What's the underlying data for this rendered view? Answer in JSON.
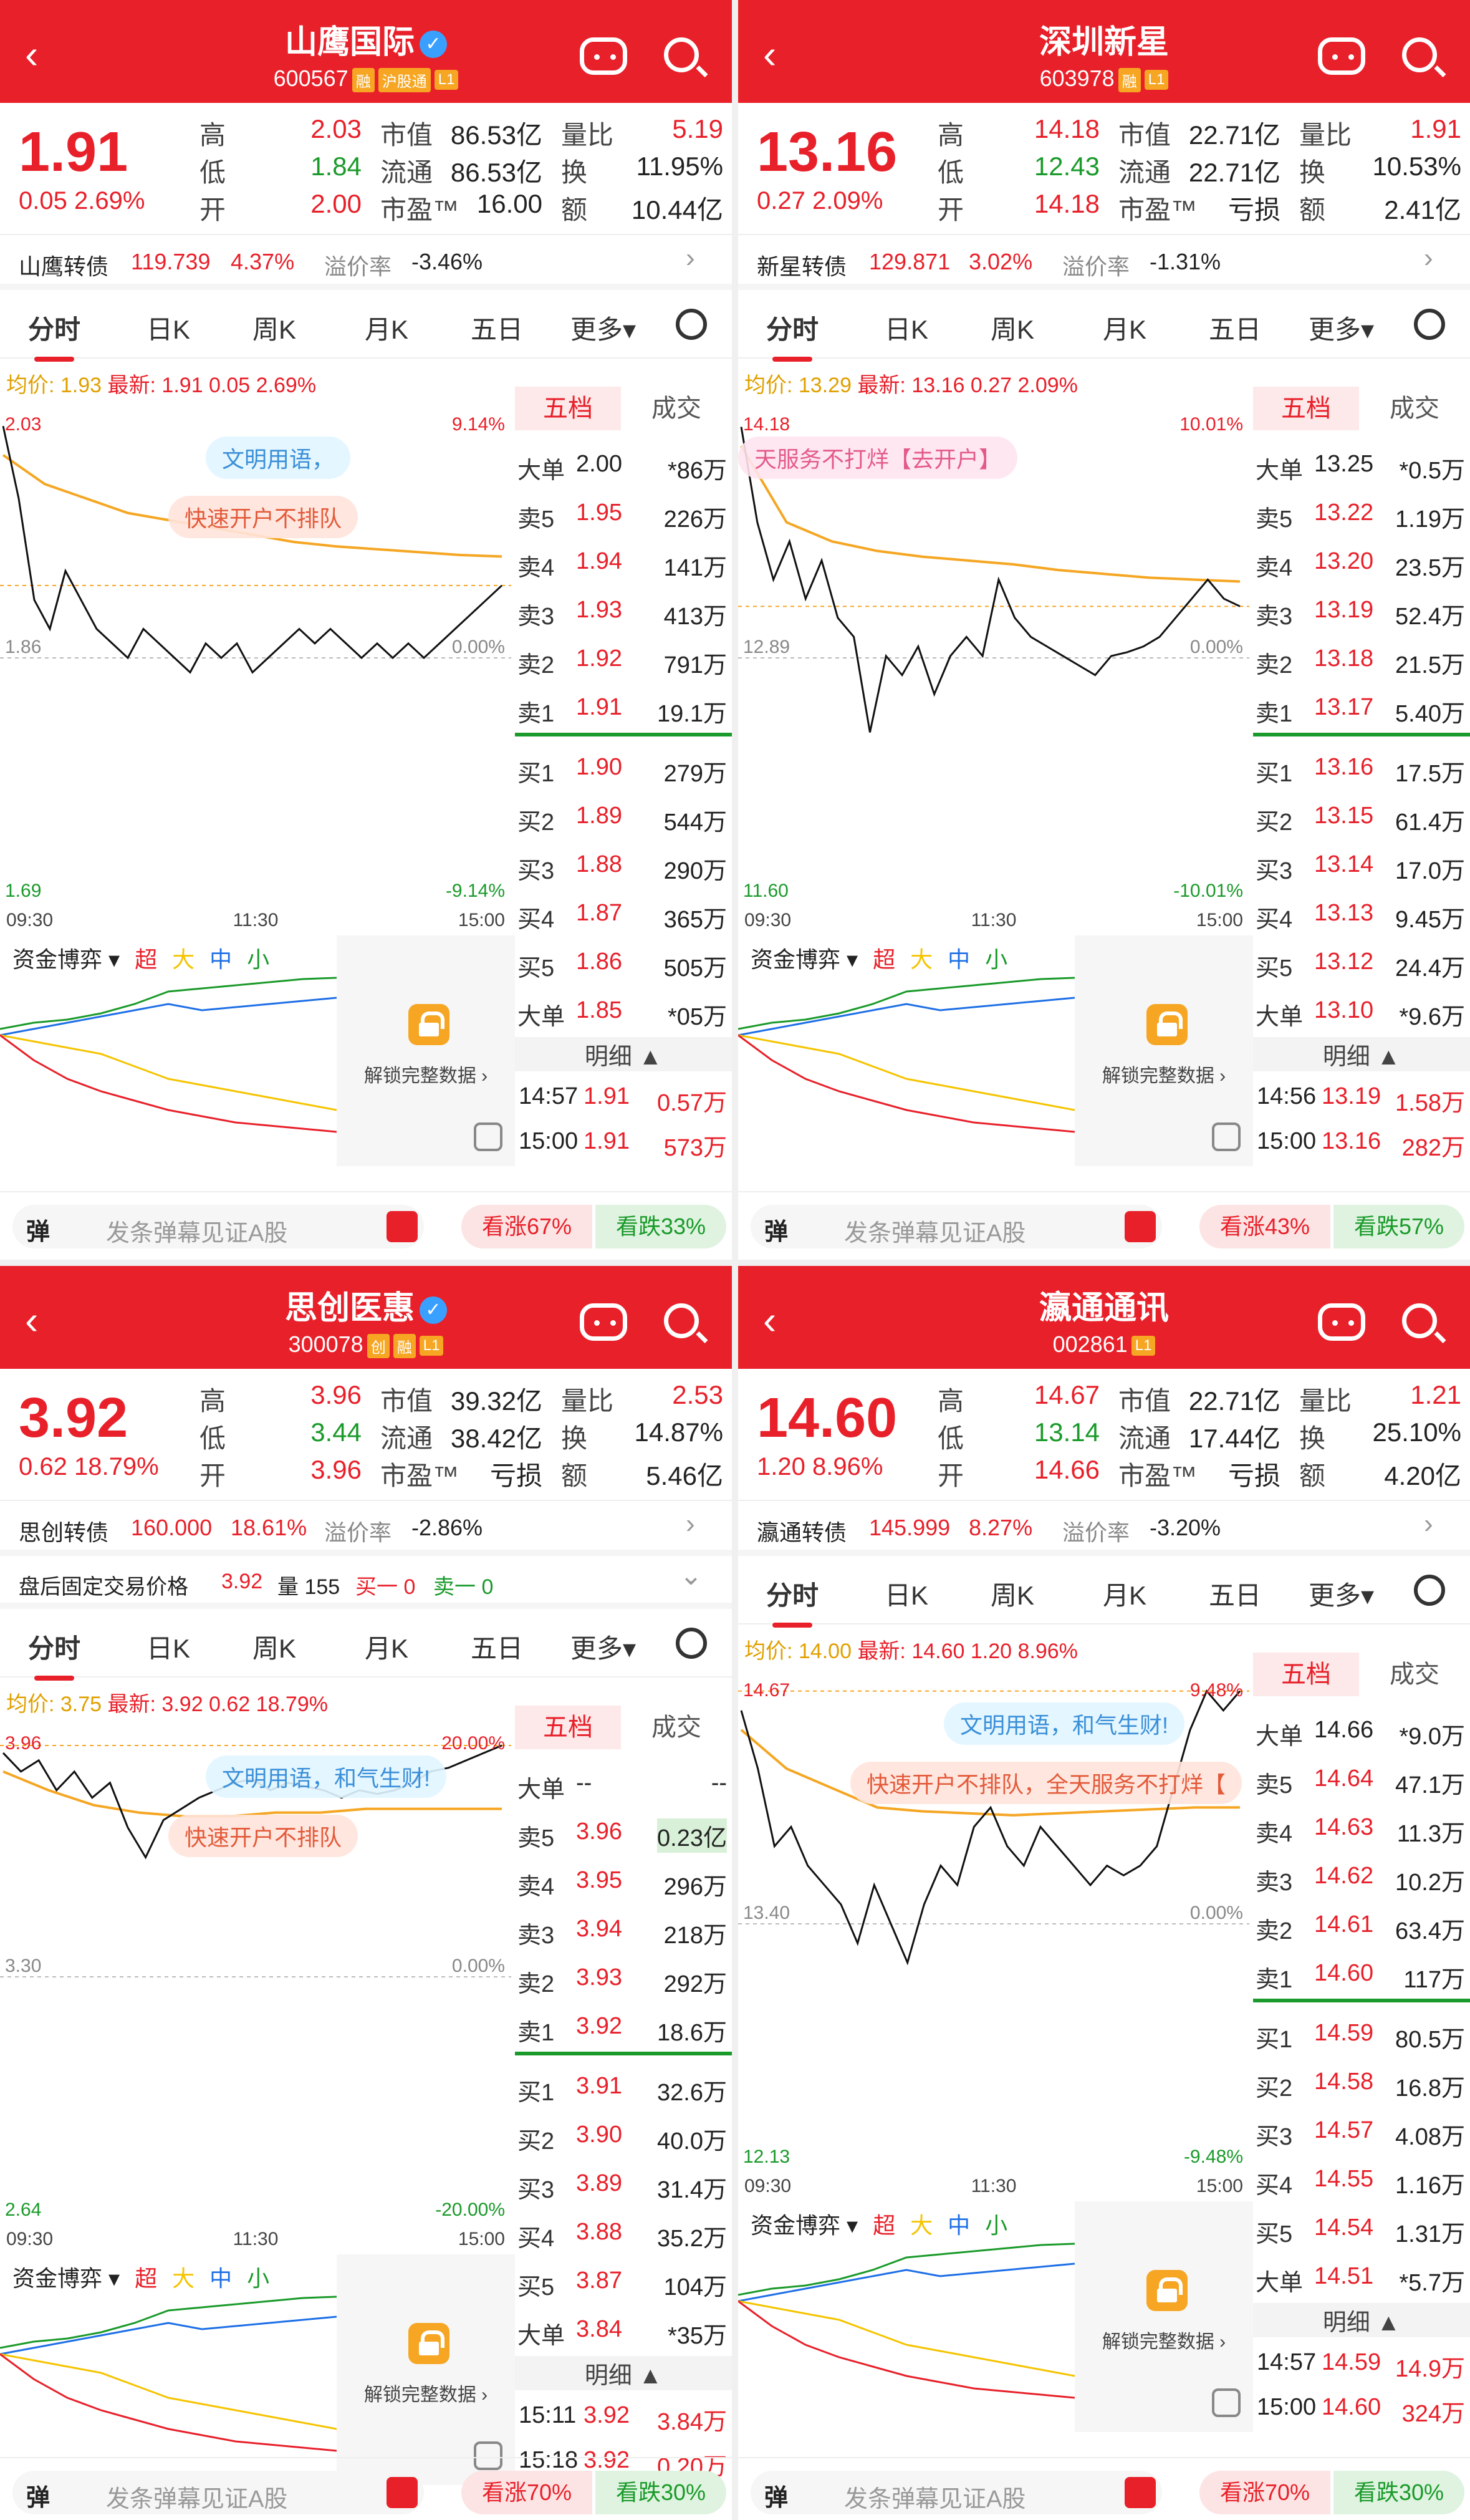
{
  "common": {
    "tabs": [
      "分时",
      "日K",
      "周K",
      "月K",
      "五日",
      "更多▾"
    ],
    "five_levels_label": "五档",
    "trades_label": "成交",
    "detail_label": "明细 ▲",
    "capital_label": "资金博弈 ▾",
    "capital_legend": [
      "超",
      "大",
      "中",
      "小"
    ],
    "unlock_text": "解锁完整数据 ›",
    "danmu_icon": "弹",
    "danmu_hint": "发条弹幕见证A股",
    "time_labels": [
      "09:30",
      "11:30",
      "15:00"
    ],
    "premium_label": "溢价率",
    "labels": {
      "high": "高",
      "low": "低",
      "open": "开",
      "mcap": "市值",
      "float": "流通",
      "pe": "市盈™",
      "vol_ratio": "量比",
      "turnover": "换",
      "amount": "额"
    },
    "colors": {
      "red": "#e8202a",
      "green": "#1a9a2a",
      "avg_line": "#f5a623",
      "blue": "#1e6fe6"
    }
  },
  "stocks": [
    {
      "name": "山鹰国际",
      "verified": true,
      "code": "600567",
      "tags": [
        "融",
        "沪股通",
        "L1"
      ],
      "price": "1.91",
      "change": "0.05",
      "change_pct": "2.69%",
      "high": "2.03",
      "low": "1.84",
      "open": "2.00",
      "mcap": "86.53亿",
      "float": "86.53亿",
      "pe": "16.00",
      "vol_ratio": "5.19",
      "turnover": "11.95%",
      "amount": "10.44亿",
      "bond": {
        "name": "山鹰转债",
        "price": "119.739",
        "pct": "4.37%",
        "premium": "-3.46%"
      },
      "avg": "均价: 1.93",
      "latest": "最新: 1.91  0.05  2.69%",
      "y_top": "2.03",
      "y_mid": "1.86",
      "y_bot": "1.69",
      "pct_top": "9.14%",
      "pct_mid": "0.00%",
      "pct_bot": "-9.14%",
      "bubbles": [
        "文明用语，",
        "快速开户不排队"
      ],
      "orderbook": [
        {
          "l": "大单",
          "p": "2.00",
          "v": "*86万",
          "c": "green"
        },
        {
          "l": "卖5",
          "p": "1.95",
          "v": "226万",
          "c": "red"
        },
        {
          "l": "卖4",
          "p": "1.94",
          "v": "141万",
          "c": "red"
        },
        {
          "l": "卖3",
          "p": "1.93",
          "v": "413万",
          "c": "red"
        },
        {
          "l": "卖2",
          "p": "1.92",
          "v": "791万",
          "c": "red"
        },
        {
          "l": "卖1",
          "p": "1.91",
          "v": "19.1万",
          "c": "red"
        },
        {
          "l": "买1",
          "p": "1.90",
          "v": "279万",
          "c": "red"
        },
        {
          "l": "买2",
          "p": "1.89",
          "v": "544万",
          "c": "red"
        },
        {
          "l": "买3",
          "p": "1.88",
          "v": "290万",
          "c": "red"
        },
        {
          "l": "买4",
          "p": "1.87",
          "v": "365万",
          "c": "red"
        },
        {
          "l": "买5",
          "p": "1.86",
          "v": "505万",
          "c": "none"
        },
        {
          "l": "大单",
          "p": "1.85",
          "v": "*05万",
          "c": "none"
        }
      ],
      "trades": [
        {
          "t": "14:57",
          "p": "1.91",
          "v": "0.57万"
        },
        {
          "t": "15:00",
          "p": "1.91",
          "v": "573万"
        }
      ],
      "price_series": [
        2.02,
        1.97,
        1.9,
        1.88,
        1.92,
        1.9,
        1.88,
        1.87,
        1.86,
        1.88,
        1.87,
        1.86,
        1.85,
        1.87,
        1.86,
        1.87,
        1.85,
        1.86,
        1.87,
        1.88,
        1.87,
        1.88,
        1.87,
        1.86,
        1.87,
        1.86,
        1.87,
        1.86,
        1.87,
        1.88,
        1.89,
        1.9,
        1.91
      ],
      "avg_series": [
        2.0,
        1.98,
        1.97,
        1.96,
        1.955,
        1.95,
        1.945,
        1.94,
        1.937,
        1.935,
        1.933,
        1.931,
        1.93
      ],
      "sentiment": {
        "up": "看涨67%",
        "down": "看跌33%"
      },
      "after_hours": null
    },
    {
      "name": "深圳新星",
      "verified": false,
      "code": "603978",
      "tags": [
        "融",
        "L1"
      ],
      "price": "13.16",
      "change": "0.27",
      "change_pct": "2.09%",
      "high": "14.18",
      "low": "12.43",
      "open": "14.18",
      "mcap": "22.71亿",
      "float": "22.71亿",
      "pe": "亏损",
      "vol_ratio": "1.91",
      "turnover": "10.53%",
      "amount": "2.41亿",
      "bond": {
        "name": "新星转债",
        "price": "129.871",
        "pct": "3.02%",
        "premium": "-1.31%"
      },
      "avg": "均价: 13.29",
      "latest": "最新: 13.16  0.27  2.09%",
      "y_top": "14.18",
      "y_mid": "12.89",
      "y_bot": "11.60",
      "pct_top": "10.01%",
      "pct_mid": "0.00%",
      "pct_bot": "-10.01%",
      "bubbles": [
        "天服务不打烊【去开户】"
      ],
      "orderbook": [
        {
          "l": "大单",
          "p": "13.25",
          "v": "*0.5万",
          "c": "green"
        },
        {
          "l": "卖5",
          "p": "13.22",
          "v": "1.19万",
          "c": "red"
        },
        {
          "l": "卖4",
          "p": "13.20",
          "v": "23.5万",
          "c": "red"
        },
        {
          "l": "卖3",
          "p": "13.19",
          "v": "52.4万",
          "c": "red"
        },
        {
          "l": "卖2",
          "p": "13.18",
          "v": "21.5万",
          "c": "red"
        },
        {
          "l": "卖1",
          "p": "13.17",
          "v": "5.40万",
          "c": "red"
        },
        {
          "l": "买1",
          "p": "13.16",
          "v": "17.5万",
          "c": "red"
        },
        {
          "l": "买2",
          "p": "13.15",
          "v": "61.4万",
          "c": "red"
        },
        {
          "l": "买3",
          "p": "13.14",
          "v": "17.0万",
          "c": "red"
        },
        {
          "l": "买4",
          "p": "13.13",
          "v": "9.45万",
          "c": "red"
        },
        {
          "l": "买5",
          "p": "13.12",
          "v": "24.4万",
          "c": "red"
        },
        {
          "l": "大单",
          "p": "13.10",
          "v": "*9.6万",
          "c": "red"
        }
      ],
      "trades": [
        {
          "t": "14:56",
          "p": "13.19",
          "v": "1.58万"
        },
        {
          "t": "15:00",
          "p": "13.16",
          "v": "282万"
        }
      ],
      "price_series": [
        14.1,
        13.6,
        13.3,
        13.5,
        13.2,
        13.4,
        13.1,
        13.0,
        12.5,
        12.9,
        12.8,
        12.95,
        12.7,
        12.9,
        13.0,
        12.9,
        13.3,
        13.1,
        13.0,
        12.95,
        12.9,
        12.85,
        12.8,
        12.9,
        12.92,
        12.95,
        13.0,
        13.1,
        13.2,
        13.3,
        13.2,
        13.16
      ],
      "avg_series": [
        14.0,
        13.6,
        13.5,
        13.45,
        13.42,
        13.4,
        13.38,
        13.35,
        13.33,
        13.31,
        13.3,
        13.29
      ],
      "sentiment": {
        "up": "看涨43%",
        "down": "看跌57%"
      },
      "after_hours": null
    },
    {
      "name": "思创医惠",
      "verified": true,
      "code": "300078",
      "tags": [
        "创",
        "融",
        "L1"
      ],
      "price": "3.92",
      "change": "0.62",
      "change_pct": "18.79%",
      "high": "3.96",
      "low": "3.44",
      "open": "3.96",
      "mcap": "39.32亿",
      "float": "38.42亿",
      "pe": "亏损",
      "vol_ratio": "2.53",
      "turnover": "14.87%",
      "amount": "5.46亿",
      "bond": {
        "name": "思创转债",
        "price": "160.000",
        "pct": "18.61%",
        "premium": "-2.86%"
      },
      "avg": "均价: 3.75",
      "latest": "最新: 3.92  0.62  18.79%",
      "y_top": "3.96",
      "y_mid": "3.30",
      "y_bot": "2.64",
      "pct_top": "20.00%",
      "pct_mid": "0.00%",
      "pct_bot": "-20.00%",
      "bubbles": [
        "文明用语，和气生财!",
        "快速开户不排队"
      ],
      "orderbook": [
        {
          "l": "大单",
          "p": "--",
          "v": "--",
          "c": "green"
        },
        {
          "l": "卖5",
          "p": "3.96",
          "v": "0.23亿",
          "c": "green"
        },
        {
          "l": "卖4",
          "p": "3.95",
          "v": "296万",
          "c": "none"
        },
        {
          "l": "卖3",
          "p": "3.94",
          "v": "218万",
          "c": "none"
        },
        {
          "l": "卖2",
          "p": "3.93",
          "v": "292万",
          "c": "none"
        },
        {
          "l": "卖1",
          "p": "3.92",
          "v": "18.6万",
          "c": "none"
        },
        {
          "l": "买1",
          "p": "3.91",
          "v": "32.6万",
          "c": "none"
        },
        {
          "l": "买2",
          "p": "3.90",
          "v": "40.0万",
          "c": "none"
        },
        {
          "l": "买3",
          "p": "3.89",
          "v": "31.4万",
          "c": "none"
        },
        {
          "l": "买4",
          "p": "3.88",
          "v": "35.2万",
          "c": "none"
        },
        {
          "l": "买5",
          "p": "3.87",
          "v": "104万",
          "c": "none"
        },
        {
          "l": "大单",
          "p": "3.84",
          "v": "*35万",
          "c": "red"
        }
      ],
      "trades": [
        {
          "t": "15:11",
          "p": "3.92",
          "v": "3.84万"
        },
        {
          "t": "15:18",
          "p": "3.92",
          "v": "0.20万"
        }
      ],
      "price_series": [
        3.9,
        3.85,
        3.88,
        3.8,
        3.85,
        3.78,
        3.82,
        3.7,
        3.62,
        3.72,
        3.75,
        3.78,
        3.8,
        3.82,
        3.83,
        3.8,
        3.82,
        3.81,
        3.8,
        3.78,
        3.8,
        3.79,
        3.8,
        3.82,
        3.85,
        3.86,
        3.88,
        3.9,
        3.92
      ],
      "avg_series": [
        3.85,
        3.8,
        3.76,
        3.74,
        3.73,
        3.73,
        3.74,
        3.74,
        3.75,
        3.75,
        3.75,
        3.75
      ],
      "sentiment": {
        "up": "看涨70%",
        "down": "看跌30%"
      },
      "after_hours": {
        "label": "盘后固定交易价格",
        "price": "3.92",
        "vol": "量 155",
        "buy": "买一 0",
        "sell": "卖一 0"
      }
    },
    {
      "name": "瀛通通讯",
      "verified": false,
      "code": "002861",
      "tags": [
        "L1"
      ],
      "price": "14.60",
      "change": "1.20",
      "change_pct": "8.96%",
      "high": "14.67",
      "low": "13.14",
      "open": "14.66",
      "mcap": "22.71亿",
      "float": "17.44亿",
      "pe": "亏损",
      "vol_ratio": "1.21",
      "turnover": "25.10%",
      "amount": "4.20亿",
      "bond": {
        "name": "瀛通转债",
        "price": "145.999",
        "pct": "8.27%",
        "premium": "-3.20%"
      },
      "avg": "均价: 14.00",
      "latest": "最新: 14.60  1.20  8.96%",
      "y_top": "14.67",
      "y_mid": "13.40",
      "y_bot": "12.13",
      "pct_top": "9.48%",
      "pct_mid": "0.00%",
      "pct_bot": "-9.48%",
      "bubbles": [
        "文明用语，和气生财!",
        "快速开户不排队，全天服务不打烊【"
      ],
      "orderbook": [
        {
          "l": "大单",
          "p": "14.66",
          "v": "*9.0万",
          "c": "green"
        },
        {
          "l": "卖5",
          "p": "14.64",
          "v": "47.1万",
          "c": "red"
        },
        {
          "l": "卖4",
          "p": "14.63",
          "v": "11.3万",
          "c": "red"
        },
        {
          "l": "卖3",
          "p": "14.62",
          "v": "10.2万",
          "c": "red"
        },
        {
          "l": "卖2",
          "p": "14.61",
          "v": "63.4万",
          "c": "red"
        },
        {
          "l": "卖1",
          "p": "14.60",
          "v": "117万",
          "c": "red"
        },
        {
          "l": "买1",
          "p": "14.59",
          "v": "80.5万",
          "c": "red"
        },
        {
          "l": "买2",
          "p": "14.58",
          "v": "16.8万",
          "c": "red"
        },
        {
          "l": "买3",
          "p": "14.57",
          "v": "4.08万",
          "c": "red"
        },
        {
          "l": "买4",
          "p": "14.55",
          "v": "1.16万",
          "c": "red"
        },
        {
          "l": "买5",
          "p": "14.54",
          "v": "1.31万",
          "c": "red"
        },
        {
          "l": "大单",
          "p": "14.51",
          "v": "*5.7万",
          "c": "red"
        }
      ],
      "trades": [
        {
          "t": "14:57",
          "p": "14.59",
          "v": "14.9万"
        },
        {
          "t": "15:00",
          "p": "14.60",
          "v": "324万"
        }
      ],
      "price_series": [
        14.5,
        14.2,
        13.8,
        13.9,
        13.7,
        13.6,
        13.5,
        13.3,
        13.6,
        13.4,
        13.2,
        13.5,
        13.7,
        13.6,
        13.9,
        14.0,
        13.8,
        13.7,
        13.9,
        13.8,
        13.7,
        13.6,
        13.7,
        13.65,
        13.7,
        13.8,
        14.1,
        14.4,
        14.6,
        14.5,
        14.6
      ],
      "avg_series": [
        14.4,
        14.2,
        14.1,
        14.0,
        13.98,
        13.97,
        13.96,
        13.97,
        13.98,
        13.99,
        14.0,
        14.0
      ],
      "sentiment": {
        "up": "看涨70%",
        "down": "看跌30%"
      },
      "after_hours": null
    }
  ]
}
